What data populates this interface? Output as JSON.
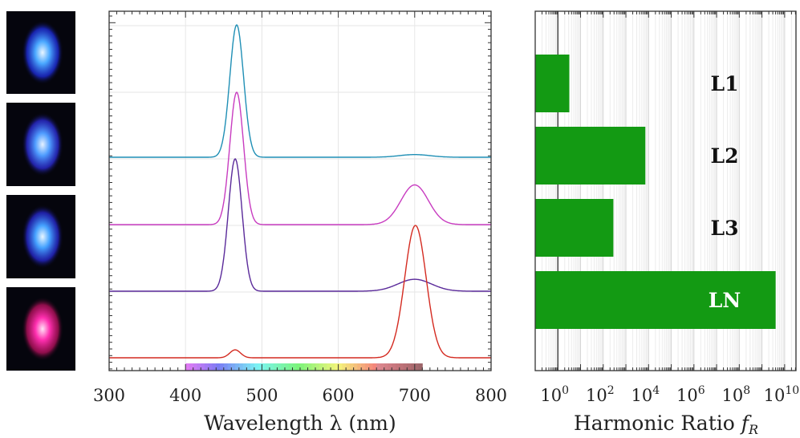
{
  "thumbnails": [
    {
      "label": "L1",
      "core": "#eaf6ff",
      "mid": "#4aa8ff",
      "outer": "#1d2bd6"
    },
    {
      "label": "L2",
      "core": "#e6f2ff",
      "mid": "#4f9dff",
      "outer": "#2a2ad0"
    },
    {
      "label": "L3",
      "core": "#e8f6ff",
      "mid": "#45a2ff",
      "outer": "#2526c9"
    },
    {
      "label": "LN",
      "core": "#ffe2f6",
      "mid": "#ff2fb0",
      "outer": "#b0105a"
    }
  ],
  "chart_data": [
    {
      "type": "line",
      "xlabel": "Wavelength λ (nm)",
      "xlim": [
        300,
        800
      ],
      "xticks": [
        300,
        400,
        500,
        600,
        700,
        800
      ],
      "grid": true,
      "series": [
        {
          "color": "#1f8fb5",
          "peaks": [
            {
              "x": 467,
              "height": 1.0,
              "width": 9
            },
            {
              "x": 700,
              "height": 0.02,
              "width": 20
            }
          ]
        },
        {
          "color": "#c83cc0",
          "peaks": [
            {
              "x": 467,
              "height": 1.0,
              "width": 9
            },
            {
              "x": 700,
              "height": 0.3,
              "width": 18
            }
          ]
        },
        {
          "color": "#5a2a9a",
          "peaks": [
            {
              "x": 465,
              "height": 1.0,
              "width": 9
            },
            {
              "x": 700,
              "height": 0.09,
              "width": 22
            }
          ]
        },
        {
          "color": "#d42a20",
          "peaks": [
            {
              "x": 465,
              "height": 0.06,
              "width": 7
            },
            {
              "x": 701,
              "height": 1.0,
              "width": 14
            }
          ]
        }
      ]
    },
    {
      "type": "bar",
      "orientation": "horizontal",
      "xlabel": "Harmonic Ratio f_R",
      "xscale": "log",
      "xlim_exp": [
        -1,
        10.5
      ],
      "xtick_exps": [
        0,
        2,
        4,
        6,
        8,
        10
      ],
      "xtick_labels": [
        "10^0",
        "10^2",
        "10^4",
        "10^6",
        "10^8",
        "10^10"
      ],
      "categories": [
        "L1",
        "L2",
        "L3",
        "LN"
      ],
      "values": [
        3.2,
        7200,
        280,
        4000000000.0
      ],
      "bar_color": "#139a13"
    }
  ]
}
